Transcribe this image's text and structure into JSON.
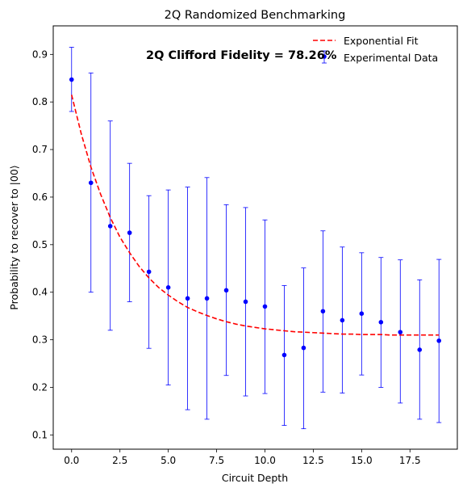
{
  "chart_data": {
    "type": "scatter",
    "title": "2Q Randomized Benchmarking",
    "xlabel": "Circuit Depth",
    "ylabel": "Probability to recover to |00⟩",
    "xlim": [
      -0.95,
      19.95
    ],
    "ylim": [
      0.07,
      0.96
    ],
    "xticks": [
      0.0,
      2.5,
      5.0,
      7.5,
      10.0,
      12.5,
      15.0,
      17.5
    ],
    "xtick_labels": [
      "0.0",
      "2.5",
      "5.0",
      "7.5",
      "10.0",
      "12.5",
      "15.0",
      "17.5"
    ],
    "yticks": [
      0.1,
      0.2,
      0.3,
      0.4,
      0.5,
      0.6,
      0.7,
      0.8,
      0.9
    ],
    "ytick_labels": [
      "0.1",
      "0.2",
      "0.3",
      "0.4",
      "0.5",
      "0.6",
      "0.7",
      "0.8",
      "0.9"
    ],
    "grid": false,
    "legend_position": "top-right",
    "annotation": "2Q Clifford Fidelity = 78.26%",
    "series": [
      {
        "name": "Experimental Data",
        "kind": "errorbar",
        "color": "#0000ff",
        "x": [
          0,
          1,
          2,
          3,
          4,
          5,
          6,
          7,
          8,
          9,
          10,
          11,
          12,
          13,
          14,
          15,
          16,
          17,
          18,
          19
        ],
        "y": [
          0.847,
          0.63,
          0.539,
          0.525,
          0.443,
          0.41,
          0.387,
          0.387,
          0.404,
          0.38,
          0.37,
          0.268,
          0.283,
          0.36,
          0.341,
          0.355,
          0.337,
          0.316,
          0.279,
          0.298
        ],
        "y_low": [
          0.78,
          0.4,
          0.32,
          0.38,
          0.282,
          0.205,
          0.153,
          0.133,
          0.225,
          0.182,
          0.187,
          0.12,
          0.113,
          0.19,
          0.188,
          0.226,
          0.2,
          0.167,
          0.133,
          0.126
        ],
        "y_high": [
          0.915,
          0.861,
          0.76,
          0.671,
          0.603,
          0.615,
          0.621,
          0.641,
          0.584,
          0.578,
          0.552,
          0.414,
          0.451,
          0.529,
          0.495,
          0.483,
          0.473,
          0.468,
          0.426,
          0.469
        ]
      },
      {
        "name": "Exponential Fit",
        "kind": "line",
        "style": "dashed",
        "color": "#ff0000",
        "x": [
          0,
          0.5,
          1,
          1.5,
          2,
          2.5,
          3,
          3.5,
          4,
          4.5,
          5,
          5.5,
          6,
          6.5,
          7,
          7.5,
          8,
          8.5,
          9,
          9.5,
          10,
          10.5,
          11,
          11.5,
          12,
          12.5,
          13,
          13.5,
          14,
          14.5,
          15,
          15.5,
          16,
          16.5,
          17,
          17.5,
          18,
          18.5,
          19
        ],
        "y": [
          0.815,
          0.733,
          0.663,
          0.606,
          0.557,
          0.516,
          0.483,
          0.454,
          0.43,
          0.41,
          0.394,
          0.38,
          0.368,
          0.359,
          0.351,
          0.344,
          0.338,
          0.333,
          0.329,
          0.326,
          0.323,
          0.321,
          0.319,
          0.317,
          0.316,
          0.315,
          0.314,
          0.313,
          0.312,
          0.312,
          0.311,
          0.311,
          0.311,
          0.31,
          0.31,
          0.31,
          0.31,
          0.31,
          0.31
        ]
      }
    ]
  }
}
